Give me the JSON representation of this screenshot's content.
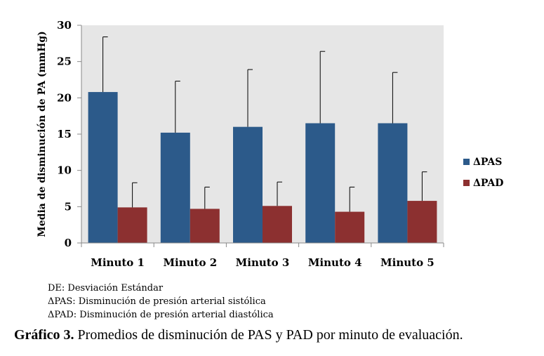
{
  "chart_data": {
    "type": "bar",
    "categories": [
      "Minuto 1",
      "Minuto 2",
      "Minuto 3",
      "Minuto 4",
      "Minuto 5"
    ],
    "series": [
      {
        "name": "ΔPAS",
        "color": "#2c5a8a",
        "values": [
          20.8,
          15.2,
          16.0,
          16.5,
          16.5
        ],
        "error_plus": [
          7.6,
          7.1,
          7.9,
          9.9,
          7.0
        ]
      },
      {
        "name": "ΔPAD",
        "color": "#8c3030",
        "values": [
          4.9,
          4.7,
          5.1,
          4.3,
          5.8
        ],
        "error_plus": [
          3.4,
          3.0,
          3.3,
          3.4,
          4.0
        ]
      }
    ],
    "ylabel": "Media de disminución de PA (mmHg)",
    "xlabel": "",
    "ylim": [
      0,
      30
    ],
    "yticks": [
      0,
      5,
      10,
      15,
      20,
      25,
      30
    ],
    "grid": false,
    "legend_position": "right",
    "plot_background": "#e6e6e6"
  },
  "notes": [
    "DE: Desviación Estándar",
    "ΔPAS: Disminución de presión arterial sistólica",
    "ΔPAD: Disminución de presión arterial diastólica"
  ],
  "caption": {
    "label": "Gráfico 3.",
    "text": " Promedios de disminución de PAS y PAD por minuto de evaluación."
  }
}
